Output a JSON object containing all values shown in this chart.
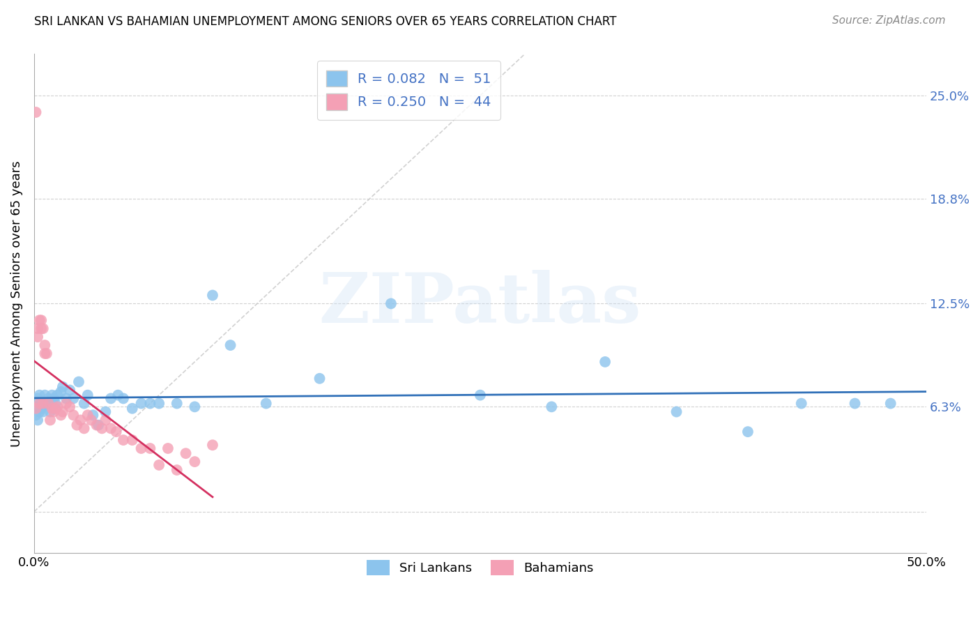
{
  "title": "SRI LANKAN VS BAHAMIAN UNEMPLOYMENT AMONG SENIORS OVER 65 YEARS CORRELATION CHART",
  "source": "Source: ZipAtlas.com",
  "ylabel": "Unemployment Among Seniors over 65 years",
  "xlim": [
    0.0,
    0.5
  ],
  "ylim": [
    -0.025,
    0.275
  ],
  "ytick_vals": [
    0.0,
    0.063,
    0.125,
    0.188,
    0.25
  ],
  "ytick_labels": [
    "",
    "6.3%",
    "12.5%",
    "18.8%",
    "25.0%"
  ],
  "xtick_vals": [
    0.0,
    0.1,
    0.2,
    0.3,
    0.4,
    0.5
  ],
  "xtick_labels": [
    "0.0%",
    "",
    "",
    "",
    "",
    "50.0%"
  ],
  "sri_lanka_R": 0.082,
  "sri_lanka_N": 51,
  "bahamas_R": 0.25,
  "bahamas_N": 44,
  "sri_lanka_color": "#8cc4ed",
  "bahamas_color": "#f4a0b5",
  "sri_lanka_line_color": "#3070b8",
  "bahamas_line_color": "#d43060",
  "legend_text_color": "#4472c4",
  "watermark_text": "ZIPatlas",
  "sri_lanka_x": [
    0.001,
    0.001,
    0.002,
    0.002,
    0.003,
    0.003,
    0.004,
    0.004,
    0.005,
    0.005,
    0.006,
    0.007,
    0.008,
    0.009,
    0.01,
    0.011,
    0.012,
    0.013,
    0.015,
    0.016,
    0.018,
    0.02,
    0.022,
    0.025,
    0.028,
    0.03,
    0.033,
    0.036,
    0.04,
    0.043,
    0.047,
    0.05,
    0.055,
    0.06,
    0.065,
    0.07,
    0.08,
    0.09,
    0.1,
    0.11,
    0.13,
    0.16,
    0.2,
    0.25,
    0.29,
    0.32,
    0.36,
    0.4,
    0.43,
    0.46,
    0.48
  ],
  "sri_lanka_y": [
    0.063,
    0.058,
    0.068,
    0.055,
    0.07,
    0.06,
    0.065,
    0.062,
    0.06,
    0.063,
    0.07,
    0.065,
    0.068,
    0.06,
    0.07,
    0.068,
    0.065,
    0.07,
    0.072,
    0.075,
    0.068,
    0.073,
    0.068,
    0.078,
    0.065,
    0.07,
    0.058,
    0.052,
    0.06,
    0.068,
    0.07,
    0.068,
    0.062,
    0.065,
    0.065,
    0.065,
    0.065,
    0.063,
    0.13,
    0.1,
    0.065,
    0.08,
    0.125,
    0.07,
    0.063,
    0.09,
    0.06,
    0.048,
    0.065,
    0.065,
    0.065
  ],
  "bahamas_x": [
    0.001,
    0.001,
    0.002,
    0.002,
    0.003,
    0.003,
    0.004,
    0.004,
    0.005,
    0.005,
    0.006,
    0.006,
    0.007,
    0.008,
    0.009,
    0.01,
    0.011,
    0.012,
    0.013,
    0.015,
    0.016,
    0.018,
    0.02,
    0.022,
    0.024,
    0.026,
    0.028,
    0.03,
    0.032,
    0.035,
    0.038,
    0.04,
    0.043,
    0.046,
    0.05,
    0.055,
    0.06,
    0.065,
    0.07,
    0.075,
    0.08,
    0.085,
    0.09,
    0.1
  ],
  "bahamas_y": [
    0.24,
    0.062,
    0.11,
    0.105,
    0.115,
    0.065,
    0.115,
    0.11,
    0.11,
    0.065,
    0.1,
    0.095,
    0.095,
    0.065,
    0.055,
    0.062,
    0.06,
    0.062,
    0.063,
    0.058,
    0.06,
    0.065,
    0.063,
    0.058,
    0.052,
    0.055,
    0.05,
    0.058,
    0.055,
    0.052,
    0.05,
    0.055,
    0.05,
    0.048,
    0.043,
    0.043,
    0.038,
    0.038,
    0.028,
    0.038,
    0.025,
    0.035,
    0.03,
    0.04
  ]
}
